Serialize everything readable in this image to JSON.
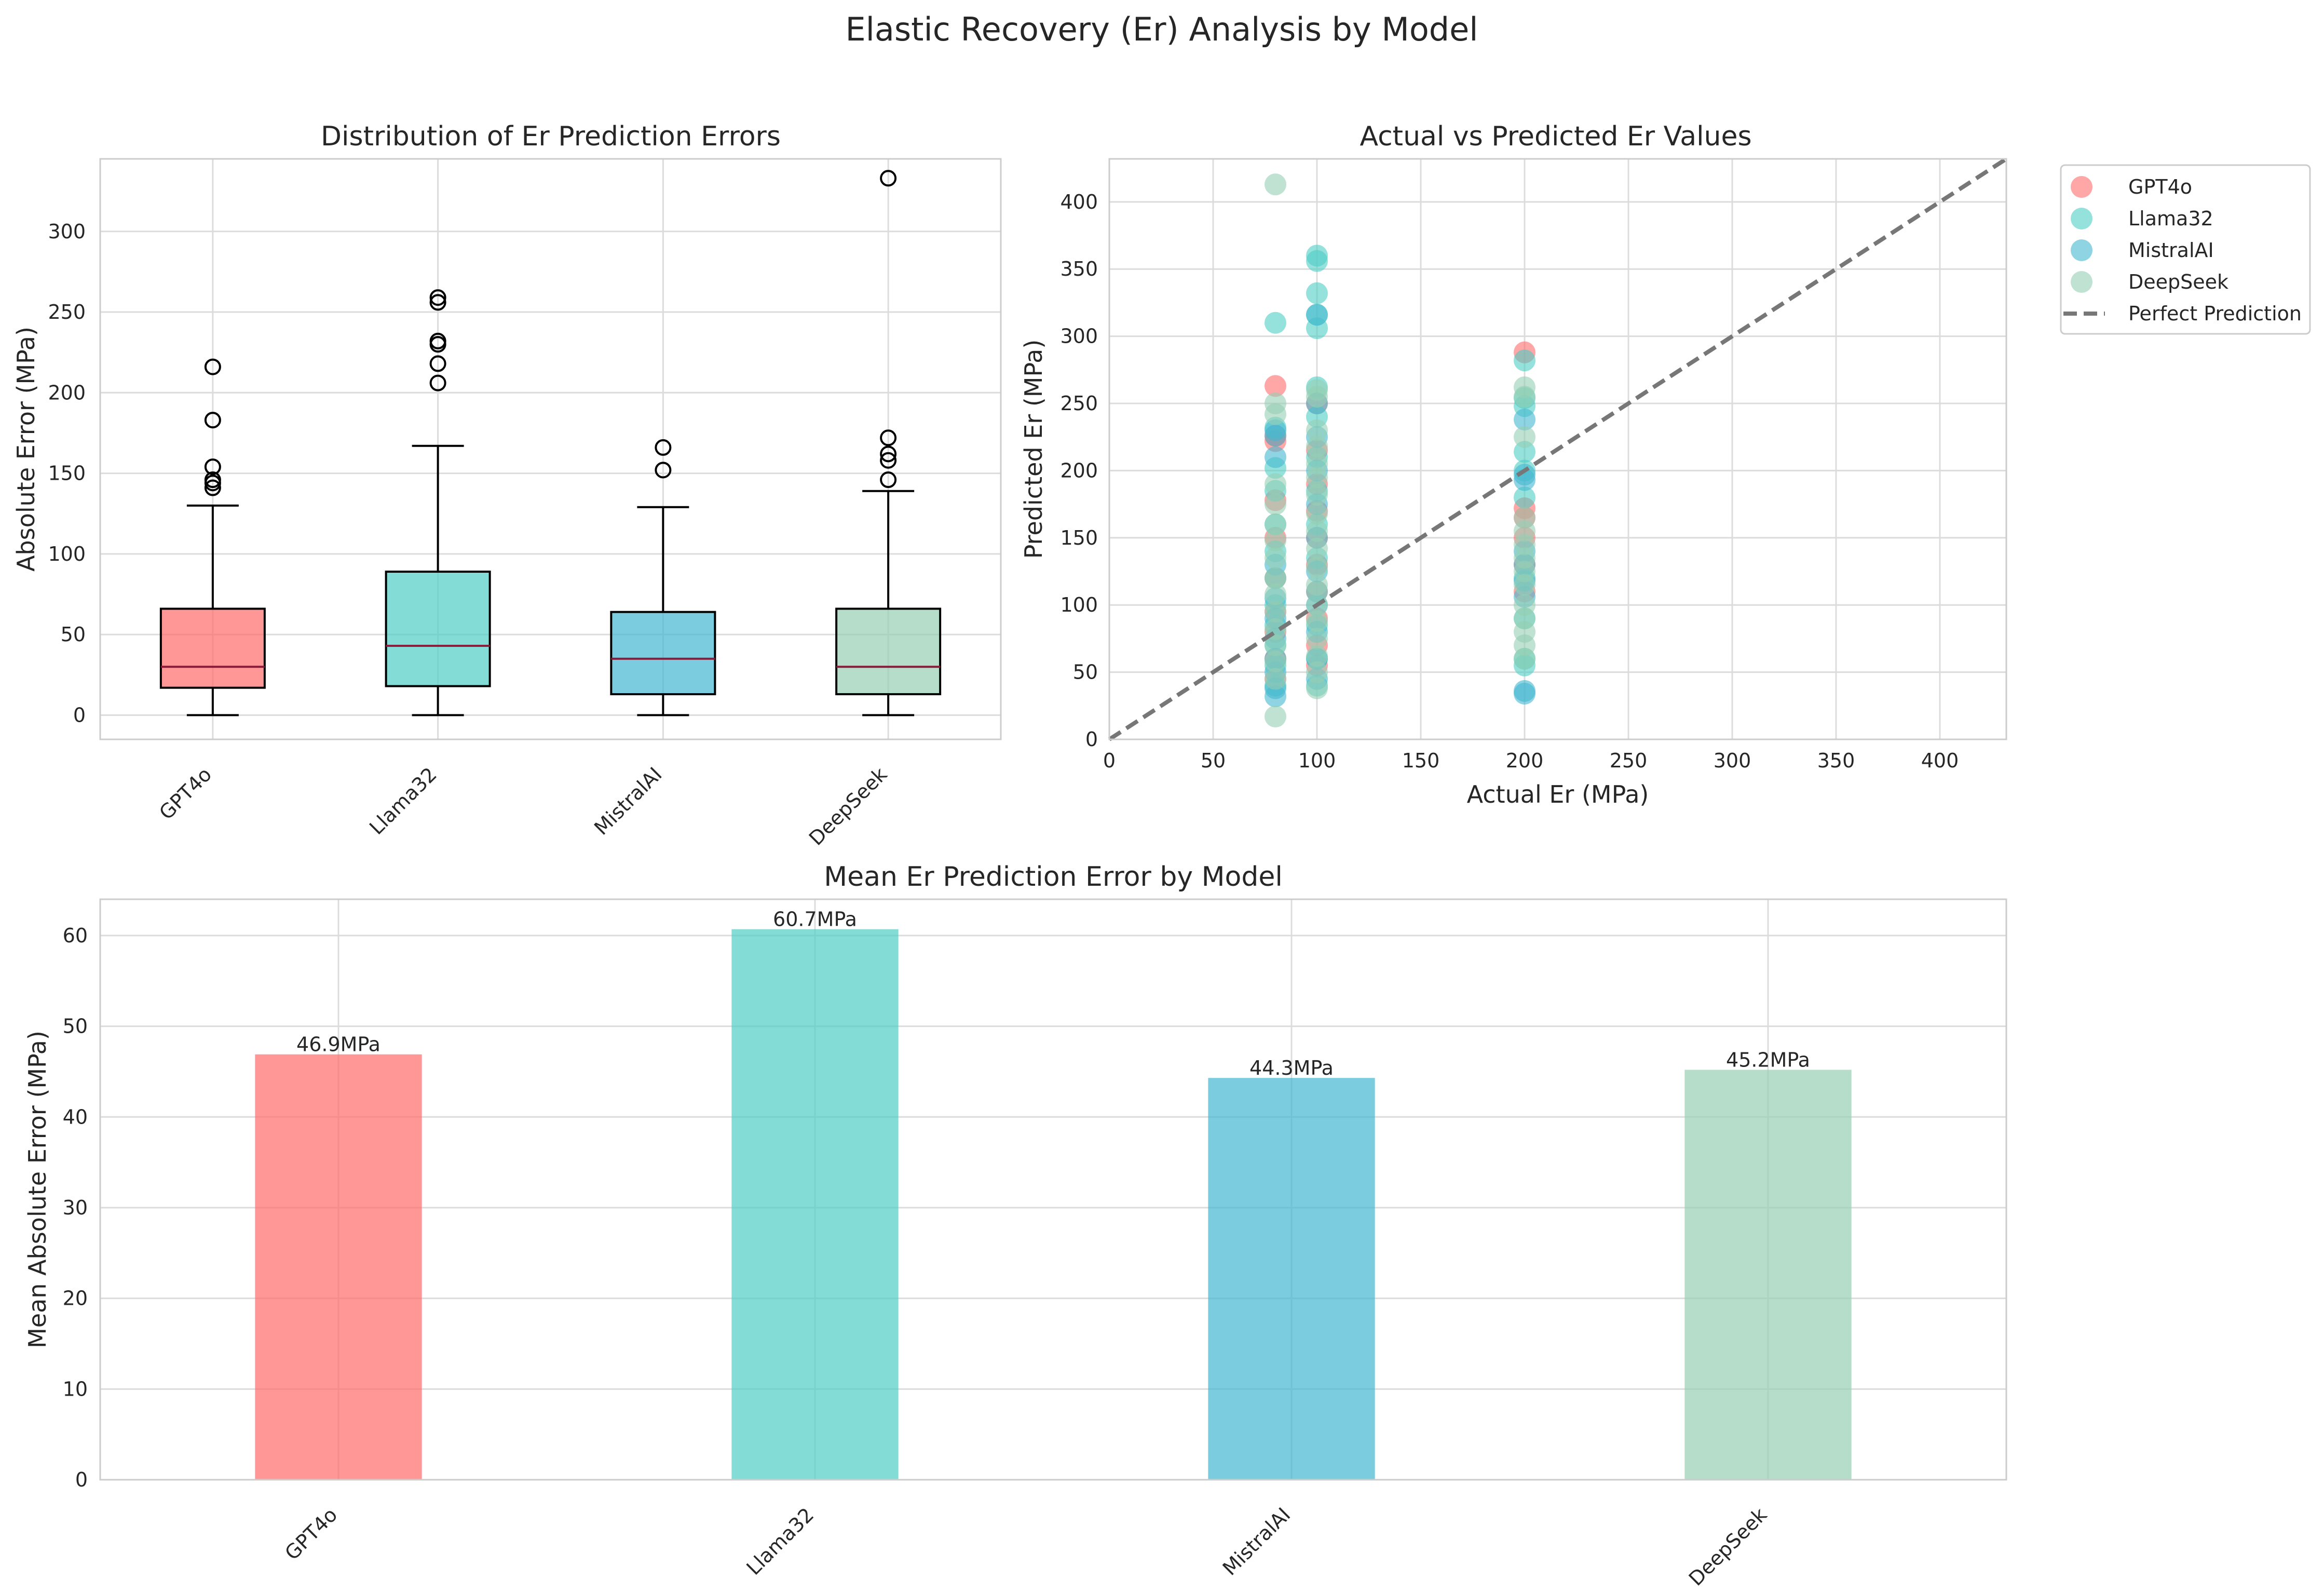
{
  "figure": {
    "title": "Elastic Recovery (Er) Analysis by Model"
  },
  "colors": {
    "GPT4o": "#FF6B6B",
    "Llama32": "#4ECDC4",
    "MistralAI": "#45B7D1",
    "DeepSeek": "#96CEB4",
    "median": "#8B1A3A",
    "perfect_line": "#777777"
  },
  "chart_data": [
    {
      "type": "box",
      "title": "Distribution of Er Prediction Errors",
      "xlabel": "",
      "ylabel": "Absolute Error (MPa)",
      "ylim": [
        -15,
        345
      ],
      "yticks": [
        0,
        50,
        100,
        150,
        200,
        250,
        300
      ],
      "grid": true,
      "categories": [
        "GPT4o",
        "Llama32",
        "MistralAI",
        "DeepSeek"
      ],
      "boxes": [
        {
          "name": "GPT4o",
          "whisker_low": 0,
          "q1": 17,
          "median": 30,
          "q3": 66,
          "whisker_high": 130,
          "outliers": [
            141,
            144,
            146,
            154,
            183,
            216
          ]
        },
        {
          "name": "Llama32",
          "whisker_low": 0,
          "q1": 18,
          "median": 43,
          "q3": 89,
          "whisker_high": 167,
          "outliers": [
            206,
            218,
            230,
            232,
            256,
            259
          ]
        },
        {
          "name": "MistralAI",
          "whisker_low": 0,
          "q1": 13,
          "median": 35,
          "q3": 64,
          "whisker_high": 129,
          "outliers": [
            152,
            166
          ]
        },
        {
          "name": "DeepSeek",
          "whisker_low": 0,
          "q1": 13,
          "median": 30,
          "q3": 66,
          "whisker_high": 139,
          "outliers": [
            146,
            158,
            162,
            172,
            333
          ]
        }
      ]
    },
    {
      "type": "scatter",
      "title": "Actual vs Predicted Er Values",
      "xlabel": "Actual Er (MPa)",
      "ylabel": "Predicted Er (MPa)",
      "xlim": [
        0,
        432
      ],
      "ylim": [
        0,
        432
      ],
      "xticks": [
        0,
        50,
        100,
        150,
        200,
        250,
        300,
        350,
        400
      ],
      "yticks": [
        0,
        50,
        100,
        150,
        200,
        250,
        300,
        350,
        400
      ],
      "grid": true,
      "legend_position": "outside-top-right",
      "reference_line": {
        "name": "Perfect Prediction",
        "style": "dashed",
        "x": [
          0,
          432
        ],
        "y": [
          0,
          432
        ]
      },
      "series": [
        {
          "name": "GPT4o",
          "points": [
            [
              80,
              263
            ],
            [
              80,
              222
            ],
            [
              80,
              226
            ],
            [
              80,
              178
            ],
            [
              80,
              150
            ],
            [
              80,
              120
            ],
            [
              80,
              95
            ],
            [
              80,
              80
            ],
            [
              80,
              60
            ],
            [
              80,
              45
            ],
            [
              100,
              250
            ],
            [
              100,
              215
            ],
            [
              100,
              190
            ],
            [
              100,
              170
            ],
            [
              100,
              150
            ],
            [
              100,
              130
            ],
            [
              100,
              110
            ],
            [
              100,
              90
            ],
            [
              100,
              70
            ],
            [
              100,
              55
            ],
            [
              200,
              288
            ],
            [
              200,
              172
            ],
            [
              200,
              165
            ],
            [
              200,
              150
            ],
            [
              200,
              130
            ],
            [
              200,
              110
            ]
          ]
        },
        {
          "name": "Llama32",
          "points": [
            [
              80,
              310
            ],
            [
              80,
              232
            ],
            [
              80,
              202
            ],
            [
              80,
              185
            ],
            [
              80,
              160
            ],
            [
              80,
              140
            ],
            [
              80,
              120
            ],
            [
              80,
              100
            ],
            [
              80,
              85
            ],
            [
              80,
              70
            ],
            [
              80,
              55
            ],
            [
              80,
              40
            ],
            [
              100,
              360
            ],
            [
              100,
              356
            ],
            [
              100,
              332
            ],
            [
              100,
              316
            ],
            [
              100,
              306
            ],
            [
              100,
              262
            ],
            [
              100,
              240
            ],
            [
              100,
              210
            ],
            [
              100,
              185
            ],
            [
              100,
              160
            ],
            [
              100,
              135
            ],
            [
              100,
              110
            ],
            [
              100,
              85
            ],
            [
              100,
              60
            ],
            [
              100,
              40
            ],
            [
              200,
              282
            ],
            [
              200,
              254
            ],
            [
              200,
              248
            ],
            [
              200,
              214
            ],
            [
              200,
              200
            ],
            [
              200,
              180
            ],
            [
              200,
              120
            ],
            [
              200,
              90
            ],
            [
              200,
              60
            ],
            [
              200,
              55
            ]
          ]
        },
        {
          "name": "MistralAI",
          "points": [
            [
              80,
              230
            ],
            [
              80,
              226
            ],
            [
              80,
              210
            ],
            [
              80,
              130
            ],
            [
              80,
              105
            ],
            [
              80,
              90
            ],
            [
              80,
              75
            ],
            [
              80,
              60
            ],
            [
              80,
              50
            ],
            [
              80,
              38
            ],
            [
              80,
              32
            ],
            [
              100,
              316
            ],
            [
              100,
              250
            ],
            [
              100,
              225
            ],
            [
              100,
              200
            ],
            [
              100,
              175
            ],
            [
              100,
              150
            ],
            [
              100,
              125
            ],
            [
              100,
              100
            ],
            [
              100,
              80
            ],
            [
              100,
              60
            ],
            [
              100,
              45
            ],
            [
              200,
              238
            ],
            [
              200,
              197
            ],
            [
              200,
              193
            ],
            [
              200,
              140
            ],
            [
              200,
              130
            ],
            [
              200,
              118
            ],
            [
              200,
              106
            ],
            [
              200,
              36
            ],
            [
              200,
              34
            ]
          ]
        },
        {
          "name": "DeepSeek",
          "points": [
            [
              80,
              413
            ],
            [
              80,
              250
            ],
            [
              80,
              242
            ],
            [
              80,
              190
            ],
            [
              80,
              175
            ],
            [
              80,
              160
            ],
            [
              80,
              148
            ],
            [
              80,
              135
            ],
            [
              80,
              120
            ],
            [
              80,
              108
            ],
            [
              80,
              95
            ],
            [
              80,
              82
            ],
            [
              80,
              70
            ],
            [
              80,
              58
            ],
            [
              80,
              45
            ],
            [
              80,
              17
            ],
            [
              100,
              260
            ],
            [
              100,
              255
            ],
            [
              100,
              230
            ],
            [
              100,
              218
            ],
            [
              100,
              205
            ],
            [
              100,
              195
            ],
            [
              100,
              182
            ],
            [
              100,
              168
            ],
            [
              100,
              155
            ],
            [
              100,
              142
            ],
            [
              100,
              128
            ],
            [
              100,
              115
            ],
            [
              100,
              100
            ],
            [
              100,
              88
            ],
            [
              100,
              75
            ],
            [
              100,
              62
            ],
            [
              100,
              50
            ],
            [
              100,
              38
            ],
            [
              200,
              262
            ],
            [
              200,
              255
            ],
            [
              200,
              225
            ],
            [
              200,
              165
            ],
            [
              200,
              155
            ],
            [
              200,
              145
            ],
            [
              200,
              135
            ],
            [
              200,
              125
            ],
            [
              200,
              115
            ],
            [
              200,
              100
            ],
            [
              200,
              90
            ],
            [
              200,
              80
            ],
            [
              200,
              70
            ],
            [
              200,
              60
            ]
          ]
        }
      ]
    },
    {
      "type": "bar",
      "title": "Mean Er Prediction Error by Model",
      "xlabel": "",
      "ylabel": "Mean Absolute Error (MPa)",
      "ylim": [
        0,
        64
      ],
      "yticks": [
        0,
        10,
        20,
        30,
        40,
        50,
        60
      ],
      "grid": true,
      "categories": [
        "GPT4o",
        "Llama32",
        "MistralAI",
        "DeepSeek"
      ],
      "values": [
        46.9,
        60.7,
        44.3,
        45.2
      ],
      "data_labels": [
        "46.9MPa",
        "60.7MPa",
        "44.3MPa",
        "45.2MPa"
      ]
    }
  ]
}
